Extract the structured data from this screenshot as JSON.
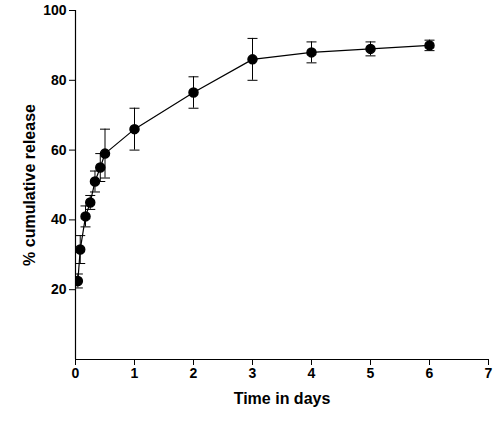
{
  "chart_data": {
    "type": "line",
    "xlabel": "Time in days",
    "ylabel": "% cumulative release",
    "x": [
      0.04,
      0.08,
      0.17,
      0.25,
      0.33,
      0.42,
      0.5,
      1,
      2,
      3,
      4,
      5,
      6
    ],
    "values": [
      22.5,
      31.5,
      41,
      45,
      51,
      55,
      59,
      66,
      76.5,
      86,
      88,
      89,
      90
    ],
    "errors": [
      2,
      4,
      3,
      2,
      3,
      4,
      7,
      6,
      4.5,
      6,
      3,
      2,
      1.5
    ],
    "color": "#000000",
    "marker": "circle",
    "xlim": [
      0,
      7
    ],
    "xticks": [
      0,
      1,
      2,
      3,
      4,
      5,
      6,
      7
    ],
    "ylim": [
      0,
      100
    ],
    "yticks": [
      20,
      40,
      60,
      80,
      100
    ],
    "grid": false
  }
}
